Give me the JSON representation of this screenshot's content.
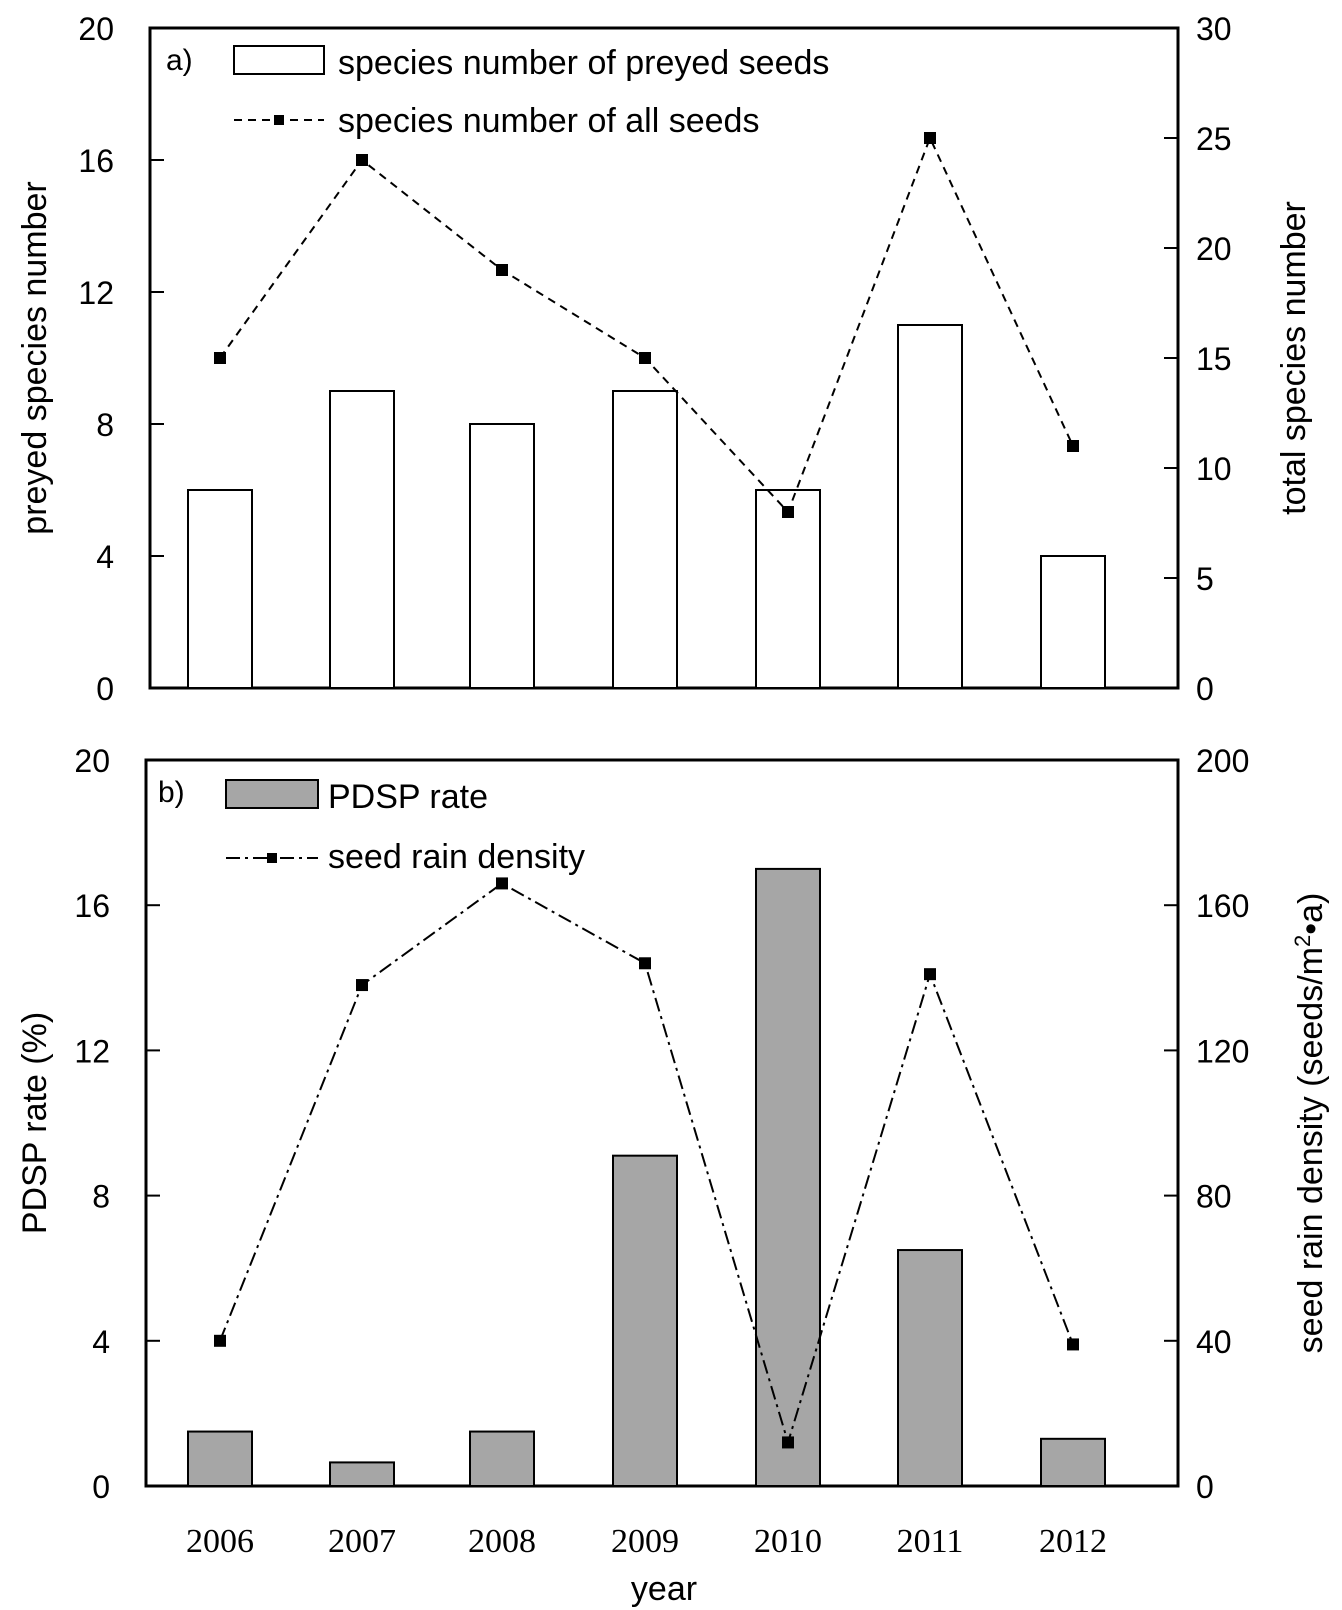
{
  "chart_data": [
    {
      "type": "bar",
      "panel_label": "a)",
      "categories": [
        "2006",
        "2007",
        "2008",
        "2009",
        "2010",
        "2011",
        "2012"
      ],
      "ylabel": "preyed species number",
      "ylim": [
        0,
        20
      ],
      "yticks": [
        "0",
        "4",
        "8",
        "12",
        "16",
        "20"
      ],
      "y2label": "total species number",
      "y2lim": [
        0,
        30
      ],
      "y2ticks": [
        "0",
        "5",
        "10",
        "15",
        "20",
        "25",
        "30"
      ],
      "legend_position": "top-left",
      "series": [
        {
          "name": "species number of preyed seeds",
          "kind": "bar",
          "axis": "left",
          "fill": "#ffffff",
          "values": [
            6,
            9,
            8,
            9,
            6,
            11,
            4
          ]
        },
        {
          "name": "species number of all seeds",
          "kind": "line",
          "axis": "right",
          "style": "dashed",
          "values": [
            15,
            24,
            19,
            15,
            8,
            25,
            11
          ]
        }
      ]
    },
    {
      "type": "bar",
      "panel_label": "b)",
      "categories": [
        "2006",
        "2007",
        "2008",
        "2009",
        "2010",
        "2011",
        "2012"
      ],
      "xlabel": "year",
      "ylabel": "PDSP rate (%)",
      "ylim": [
        0,
        20
      ],
      "yticks": [
        "0",
        "4",
        "8",
        "12",
        "16",
        "20"
      ],
      "y2label_main": "seed rain density (seeds/m",
      "y2label_sup": "2",
      "y2label_end": "•a)",
      "y2lim": [
        0,
        200
      ],
      "y2ticks": [
        "0",
        "40",
        "80",
        "120",
        "160",
        "200"
      ],
      "legend_position": "top-left",
      "series": [
        {
          "name": "PDSP rate",
          "kind": "bar",
          "axis": "left",
          "fill": "#a6a6a6",
          "values": [
            1.5,
            0.65,
            1.5,
            9.1,
            17,
            6.5,
            1.3
          ]
        },
        {
          "name": "seed rain density",
          "kind": "line",
          "axis": "right",
          "style": "dashdot",
          "values": [
            40,
            138,
            166,
            144,
            12,
            141,
            39
          ]
        }
      ]
    }
  ]
}
